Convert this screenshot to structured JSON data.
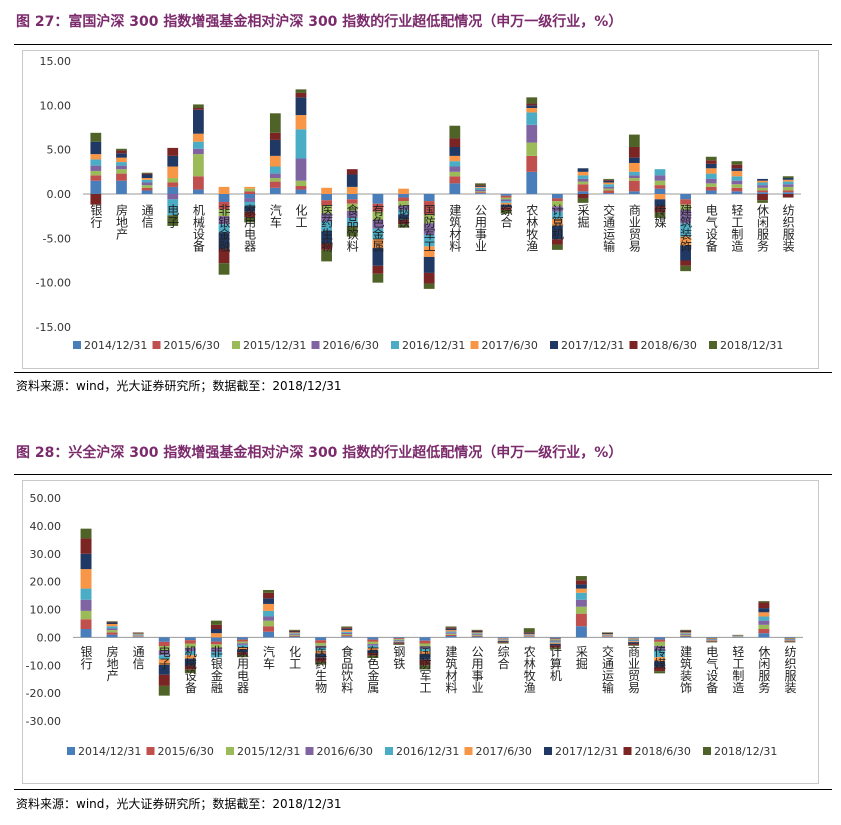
{
  "figures": [
    {
      "title": "图 27：富国沪深 300 指数增强基金相对沪深 300 指数的行业超低配情况（申万一级行业，%）",
      "source": "资料来源：wind，光大证券研究所；数据截至：2018/12/31"
    },
    {
      "title": "图 28：兴全沪深 300 指数增强基金相对沪深 300 指数的行业超低配情况（申万一级行业，%）",
      "source": "资料来源：wind，光大证券研究所；数据截至：2018/12/31"
    }
  ],
  "colors": [
    "#4a7ebb",
    "#c0504d",
    "#9bbb59",
    "#8064a2",
    "#4bacc6",
    "#f79646",
    "#1f3864",
    "#7b2424",
    "#4f6228"
  ],
  "chart_data": [
    {
      "type": "bar",
      "stacked": true,
      "title": "",
      "xlabel": "",
      "ylabel": "",
      "ylim": [
        -15,
        15
      ],
      "yticks": [
        "15.00",
        "10.00",
        "5.00",
        "0.00",
        "-5.00",
        "-10.00",
        "-15.00"
      ],
      "legend_position": "bottom",
      "categories": [
        "银行",
        "房地产",
        "通信",
        "电子",
        "机械设备",
        "非银金融",
        "家用电器",
        "汽车",
        "化工",
        "医药生物",
        "食品饮料",
        "有色金属",
        "钢铁",
        "国防军工",
        "建筑材料",
        "公用事业",
        "综合",
        "农林牧渔",
        "计算机",
        "采掘",
        "交通运输",
        "商业贸易",
        "传媒",
        "建筑装饰",
        "电气设备",
        "轻工制造",
        "休闲服务",
        "纺织服装"
      ],
      "series": [
        {
          "name": "2014/12/31",
          "values": [
            1.5,
            1.5,
            0.4,
            0.8,
            0.5,
            -0.9,
            -0.5,
            0.7,
            0.5,
            -0.7,
            -0.6,
            -1.1,
            -0.4,
            -0.8,
            1.2,
            0.1,
            -0.2,
            2.5,
            -0.5,
            0.3,
            0.1,
            0.3,
            0.6,
            -0.6,
            0.4,
            0.3,
            0.2,
            0.2
          ]
        },
        {
          "name": "2015/6/30",
          "values": [
            0.6,
            0.8,
            0.3,
            0.5,
            1.5,
            -0.8,
            0.3,
            0.7,
            0.4,
            -0.6,
            -0.5,
            -0.9,
            -0.4,
            -1.5,
            0.8,
            0.1,
            -0.2,
            1.8,
            -0.3,
            0.8,
            0.3,
            1.2,
            0.4,
            -0.6,
            0.4,
            0.4,
            0.2,
            0.2
          ]
        },
        {
          "name": "2015/12/31",
          "values": [
            0.5,
            0.5,
            0.3,
            0.5,
            2.5,
            -0.8,
            0.3,
            0.4,
            0.6,
            -0.9,
            -0.8,
            -0.9,
            -0.5,
            -1.0,
            0.5,
            0.1,
            -0.2,
            1.5,
            -0.6,
            0.3,
            0.2,
            0.3,
            0.5,
            -0.6,
            0.4,
            0.4,
            0.3,
            0.4
          ]
        },
        {
          "name": "2016/6/30",
          "values": [
            0.6,
            0.4,
            0.3,
            -0.6,
            0.6,
            -0.9,
            -0.4,
            0.5,
            2.5,
            -0.9,
            -0.8,
            -1.0,
            -0.5,
            -1.3,
            0.6,
            0.2,
            -0.2,
            2.0,
            -0.6,
            0.3,
            0.2,
            0.3,
            0.6,
            -1.5,
            0.5,
            0.4,
            0.3,
            0.3
          ]
        },
        {
          "name": "2016/12/31",
          "values": [
            0.7,
            0.4,
            0.3,
            -1.8,
            0.8,
            -1.0,
            -0.5,
            0.8,
            3.3,
            -1.1,
            -0.9,
            -1.2,
            -0.5,
            -1.3,
            0.6,
            0.2,
            -0.2,
            1.4,
            -0.8,
            0.4,
            0.3,
            0.4,
            0.7,
            -1.5,
            0.6,
            0.5,
            0.3,
            0.3
          ]
        },
        {
          "name": "2017/6/30",
          "values": [
            0.6,
            0.5,
            0.2,
            1.3,
            0.9,
            0.8,
            0.2,
            1.2,
            1.6,
            0.7,
            0.8,
            -1.0,
            0.6,
            -1.2,
            0.6,
            0.1,
            -0.2,
            0.5,
            -0.8,
            0.4,
            0.2,
            1.0,
            -0.6,
            -1.0,
            0.6,
            0.6,
            0.2,
            0.2
          ]
        },
        {
          "name": "2017/12/31",
          "values": [
            1.4,
            0.5,
            0.4,
            1.2,
            2.7,
            -1.8,
            -0.6,
            1.8,
            2.0,
            -1.4,
            1.4,
            -2.0,
            -0.6,
            -1.8,
            1.0,
            0.1,
            -0.3,
            0.3,
            -1.5,
            0.4,
            0.2,
            0.6,
            -0.8,
            -1.7,
            0.5,
            0.3,
            0.2,
            0.2
          ]
        },
        {
          "name": "2018/6/30",
          "values": [
            -1.2,
            0.3,
            0.1,
            0.9,
            0.2,
            -1.6,
            -0.6,
            0.8,
            0.5,
            -0.7,
            0.6,
            -0.9,
            -0.5,
            -1.2,
            1.0,
            0.1,
            -0.3,
            0.2,
            -0.6,
            -0.5,
            0.1,
            1.2,
            -0.7,
            -0.6,
            0.4,
            0.4,
            -0.7,
            -0.4
          ]
        },
        {
          "name": "2018/12/31",
          "values": [
            1.0,
            0.2,
            0.1,
            -1.2,
            0.4,
            -1.3,
            -0.6,
            2.2,
            0.4,
            -1.3,
            -1.2,
            -1.0,
            -0.4,
            -0.6,
            1.4,
            0.2,
            -0.4,
            0.7,
            -0.6,
            -0.5,
            0.1,
            1.4,
            -0.6,
            -0.6,
            0.4,
            0.4,
            -0.3,
            0.2
          ]
        }
      ]
    },
    {
      "type": "bar",
      "stacked": true,
      "title": "",
      "xlabel": "",
      "ylabel": "",
      "ylim": [
        -30,
        50
      ],
      "yticks": [
        "50.00",
        "40.00",
        "30.00",
        "20.00",
        "10.00",
        "0.00",
        "-10.00",
        "-20.00",
        "-30.00"
      ],
      "legend_position": "bottom",
      "categories": [
        "银行",
        "房地产",
        "通信",
        "电子",
        "机械设备",
        "非银金融",
        "家用电器",
        "汽车",
        "化工",
        "医药生物",
        "食品饮料",
        "有色金属",
        "钢铁",
        "国防军工",
        "建筑材料",
        "公用事业",
        "综合",
        "农林牧渔",
        "计算机",
        "采掘",
        "交通运输",
        "商业贸易",
        "传媒",
        "建筑装饰",
        "电气设备",
        "轻工制造",
        "休闲服务",
        "纺织服装"
      ],
      "series": [
        {
          "name": "2014/12/31",
          "values": [
            3.0,
            1.0,
            0.2,
            -1.6,
            -1.0,
            -1.5,
            -0.8,
            2.0,
            0.3,
            -1.0,
            0.4,
            -0.8,
            -0.3,
            -1.2,
            0.5,
            0.3,
            -0.3,
            0.2,
            -0.4,
            4.0,
            0.2,
            -0.3,
            -0.8,
            0.3,
            -0.2,
            0.1,
            1.5,
            -0.2
          ]
        },
        {
          "name": "2015/6/30",
          "values": [
            3.5,
            0.8,
            0.2,
            -1.5,
            -1.2,
            -1.0,
            -0.7,
            2.0,
            0.3,
            -1.0,
            0.4,
            -0.8,
            -0.3,
            -1.0,
            0.4,
            0.3,
            -0.2,
            0.2,
            -0.3,
            4.5,
            0.2,
            -0.2,
            -0.8,
            0.3,
            -0.2,
            0.1,
            1.5,
            -0.2
          ]
        },
        {
          "name": "2015/12/31",
          "values": [
            3.0,
            0.8,
            0.2,
            -1.5,
            -1.5,
            -1.2,
            -0.6,
            2.0,
            0.3,
            -1.0,
            0.4,
            -0.8,
            -0.3,
            -1.0,
            0.4,
            0.3,
            -0.2,
            0.2,
            -0.4,
            2.5,
            0.2,
            -0.3,
            -1.5,
            0.3,
            -0.2,
            0.1,
            1.5,
            -0.2
          ]
        },
        {
          "name": "2016/6/30",
          "values": [
            4.0,
            0.6,
            0.2,
            -1.8,
            -1.2,
            -1.5,
            -0.6,
            1.5,
            0.3,
            -0.8,
            0.4,
            -0.6,
            -0.3,
            -0.8,
            0.4,
            0.3,
            -0.2,
            0.2,
            -0.4,
            2.5,
            0.2,
            -0.3,
            -1.5,
            0.3,
            -0.2,
            0.1,
            1.5,
            -0.2
          ]
        },
        {
          "name": "2016/12/31",
          "values": [
            4.0,
            0.8,
            0.3,
            -1.5,
            -1.5,
            -2.0,
            -0.8,
            2.0,
            0.3,
            -1.0,
            0.4,
            -0.8,
            -0.3,
            -1.0,
            0.4,
            0.3,
            -0.2,
            0.2,
            -0.4,
            2.5,
            0.2,
            -0.3,
            -2.5,
            0.3,
            -0.2,
            0.1,
            1.5,
            -0.2
          ]
        },
        {
          "name": "2017/6/30",
          "values": [
            7.0,
            0.8,
            0.3,
            -2.0,
            -1.2,
            1.5,
            -0.8,
            2.5,
            0.3,
            -1.0,
            0.6,
            -0.8,
            -0.3,
            -1.0,
            0.5,
            0.3,
            -0.2,
            0.2,
            -0.4,
            1.5,
            0.2,
            -0.3,
            -1.5,
            0.3,
            -0.2,
            0.1,
            1.5,
            -0.2
          ]
        },
        {
          "name": "2017/12/31",
          "values": [
            5.5,
            0.5,
            0.2,
            -3.5,
            -2.5,
            1.5,
            -1.0,
            2.0,
            0.3,
            -1.5,
            0.5,
            -1.0,
            -0.3,
            -2.0,
            0.5,
            0.3,
            -0.3,
            0.3,
            -0.6,
            1.5,
            0.2,
            -0.5,
            -2.0,
            0.3,
            -0.2,
            0.1,
            1.5,
            -0.2
          ]
        },
        {
          "name": "2018/6/30",
          "values": [
            5.5,
            0.3,
            0.1,
            -4.0,
            -1.5,
            1.5,
            -1.0,
            2.0,
            0.3,
            -1.5,
            0.4,
            -1.0,
            -0.3,
            -2.0,
            0.4,
            0.3,
            -0.3,
            0.3,
            -0.8,
            1.5,
            0.2,
            -0.5,
            -1.5,
            0.3,
            -0.2,
            0.1,
            2.0,
            -0.2
          ]
        },
        {
          "name": "2018/12/31",
          "values": [
            3.5,
            0.2,
            0.1,
            -3.5,
            -1.2,
            1.5,
            -0.8,
            1.0,
            0.3,
            -1.0,
            0.4,
            -0.8,
            -0.3,
            -1.5,
            0.4,
            0.3,
            -0.3,
            1.5,
            -0.6,
            1.5,
            0.2,
            -0.3,
            -0.8,
            0.3,
            -0.2,
            0.1,
            0.5,
            -0.2
          ]
        }
      ]
    }
  ]
}
